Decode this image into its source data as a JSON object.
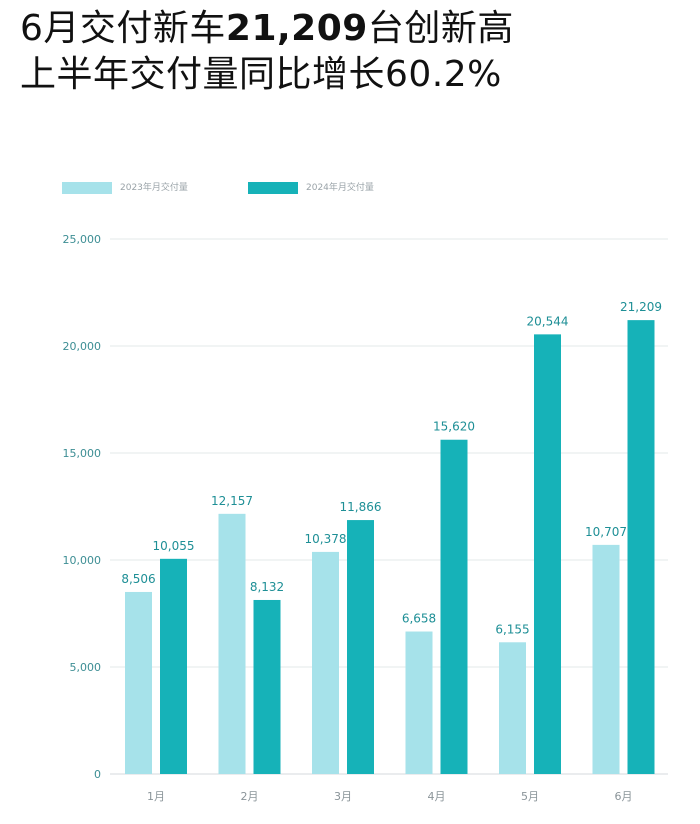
{
  "headline": {
    "line1_prefix": "6月交付新车",
    "line1_number": "21,209",
    "line1_suffix": "台创新高",
    "line2": "上半年交付量同比增长60.2%"
  },
  "colors": {
    "series_2023": "#a6e2ea",
    "series_2024": "#16b2b8",
    "label": "#1e8f96",
    "axis_text": "#3d8e94",
    "grid": "#e3e8ea"
  },
  "chart_data": {
    "type": "bar",
    "categories": [
      "1月",
      "2月",
      "3月",
      "4月",
      "5月",
      "6月"
    ],
    "series": [
      {
        "name": "2023年月交付量",
        "values": [
          8506,
          12157,
          10378,
          6658,
          6155,
          10707
        ],
        "labels": [
          "8,506",
          "12,157",
          "10,378",
          "6,658",
          "6,155",
          "10,707"
        ]
      },
      {
        "name": "2024年月交付量",
        "values": [
          10055,
          8132,
          11866,
          15620,
          20544,
          21209
        ],
        "labels": [
          "10,055",
          "8,132",
          "11,866",
          "15,620",
          "20,544",
          "21,209"
        ]
      }
    ],
    "ylim": [
      0,
      25000
    ],
    "yticks": [
      0,
      5000,
      10000,
      15000,
      20000,
      25000
    ],
    "ytick_labels": [
      "0",
      "5,000",
      "10,000",
      "15,000",
      "20,000",
      "25,000"
    ],
    "grid": true,
    "legend": "top-left",
    "xlabel": "",
    "ylabel": ""
  }
}
